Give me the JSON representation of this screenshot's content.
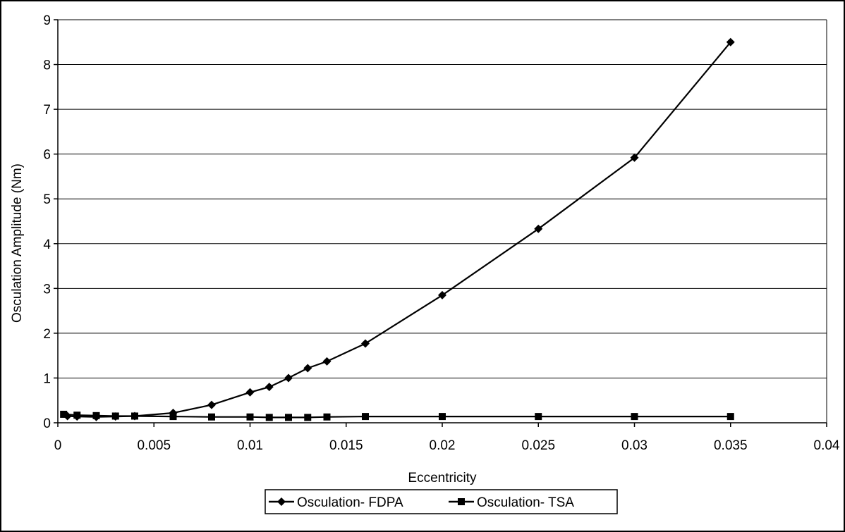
{
  "chart_data": {
    "type": "line",
    "title": "",
    "xlabel": "Eccentricity",
    "ylabel": "Osculation Amplitude (Nm)",
    "xlim": [
      0,
      0.04
    ],
    "ylim": [
      0,
      9
    ],
    "x_ticks": [
      "0",
      "0.005",
      "0.01",
      "0.015",
      "0.02",
      "0.025",
      "0.03",
      "0.035",
      "0.04"
    ],
    "y_ticks": [
      "0",
      "1",
      "2",
      "3",
      "4",
      "5",
      "6",
      "7",
      "8",
      "9"
    ],
    "grid": "horizontal",
    "legend_position": "bottom",
    "series": [
      {
        "name": "Osculation- FDPA",
        "marker": "diamond",
        "color": "#000000",
        "x": [
          0.0005,
          0.001,
          0.002,
          0.003,
          0.004,
          0.006,
          0.008,
          0.01,
          0.011,
          0.012,
          0.013,
          0.014,
          0.016,
          0.02,
          0.025,
          0.03,
          0.035
        ],
        "y": [
          0.15,
          0.14,
          0.13,
          0.14,
          0.15,
          0.22,
          0.4,
          0.68,
          0.8,
          1.0,
          1.22,
          1.37,
          1.77,
          2.85,
          4.33,
          5.92,
          8.5
        ]
      },
      {
        "name": "Osculation- TSA",
        "marker": "square",
        "color": "#000000",
        "x": [
          0.0003,
          0.001,
          0.002,
          0.003,
          0.004,
          0.006,
          0.008,
          0.01,
          0.011,
          0.012,
          0.013,
          0.014,
          0.016,
          0.02,
          0.025,
          0.03,
          0.035
        ],
        "y": [
          0.19,
          0.17,
          0.16,
          0.15,
          0.15,
          0.14,
          0.13,
          0.13,
          0.12,
          0.12,
          0.12,
          0.13,
          0.14,
          0.14,
          0.14,
          0.14,
          0.14
        ]
      }
    ]
  }
}
